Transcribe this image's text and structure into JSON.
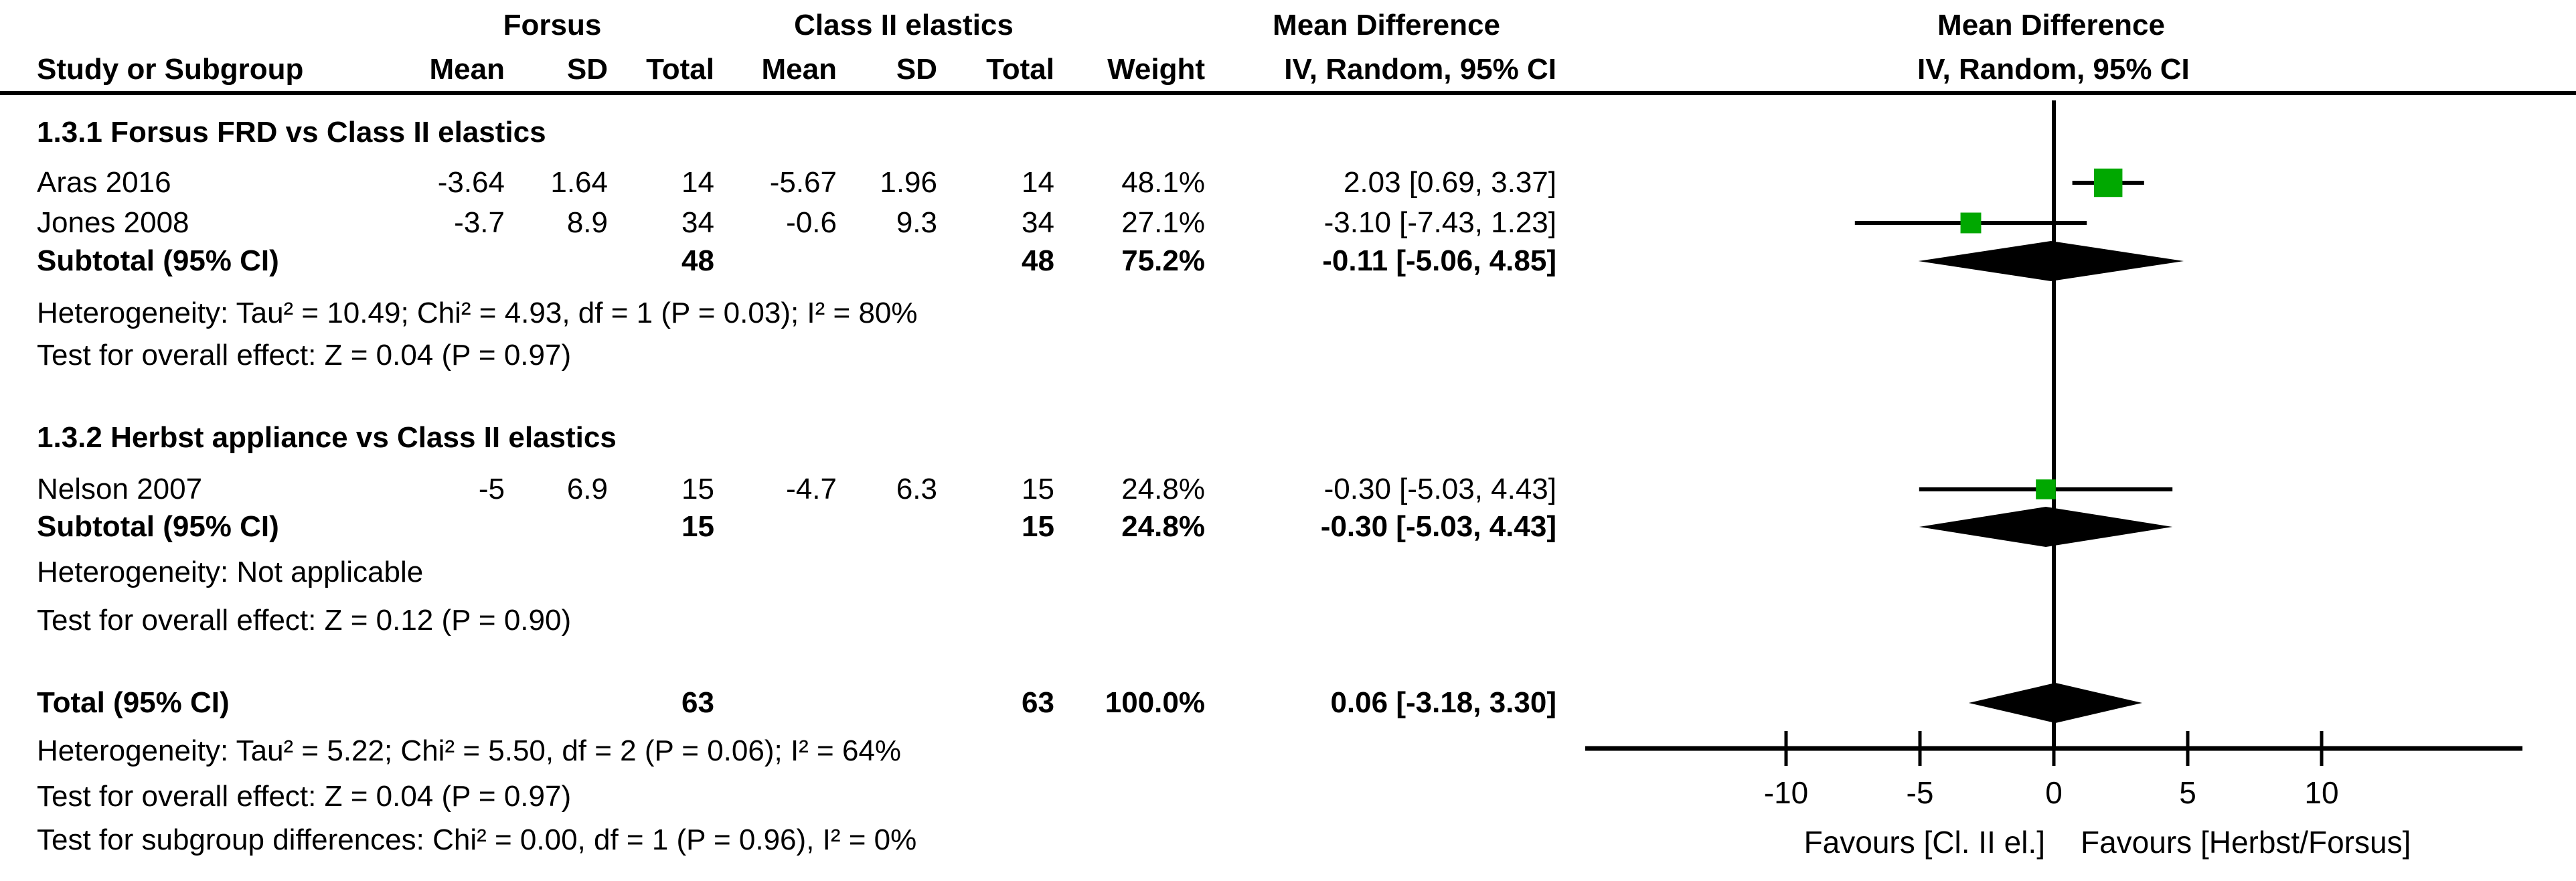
{
  "header": {
    "group_forsus": "Forsus",
    "group_classii": "Class II elastics",
    "effect_label": "Mean Difference",
    "effect_sub": "IV, Random, 95% CI",
    "plot_label": "Mean Difference",
    "plot_sub": "IV, Random, 95% CI",
    "study": "Study or Subgroup",
    "mean1": "Mean",
    "sd1": "SD",
    "total1": "Total",
    "mean2": "Mean",
    "sd2": "SD",
    "total2": "Total",
    "weight": "Weight"
  },
  "rows": [
    {
      "style": "group",
      "cells": {
        "study": "1.3.1 Forsus FRD vs Class II elastics"
      }
    },
    {
      "style": "study",
      "cells": {
        "study": "Aras 2016",
        "mean1": "-3.64",
        "sd1": "1.64",
        "total1": "14",
        "mean2": "-5.67",
        "sd2": "1.96",
        "total2": "14",
        "weight": "48.1%",
        "ci": "2.03 [0.69, 3.37]"
      }
    },
    {
      "style": "study",
      "cells": {
        "study": "Jones 2008",
        "mean1": "-3.7",
        "sd1": "8.9",
        "total1": "34",
        "mean2": "-0.6",
        "sd2": "9.3",
        "total2": "34",
        "weight": "27.1%",
        "ci": "-3.10 [-7.43, 1.23]"
      }
    },
    {
      "style": "bold",
      "cells": {
        "study": "Subtotal (95% CI)",
        "total1": "48",
        "total2": "48",
        "weight": "75.2%",
        "ci": "-0.11 [-5.06, 4.85]"
      }
    },
    {
      "style": "text",
      "cells": {
        "study": "Heterogeneity: Tau² = 10.49; Chi² = 4.93, df = 1 (P = 0.03); I² = 80%"
      }
    },
    {
      "style": "text",
      "cells": {
        "study": "Test for overall effect: Z = 0.04 (P = 0.97)"
      }
    },
    {
      "style": "group",
      "cells": {
        "study": "1.3.2 Herbst appliance vs Class II elastics"
      }
    },
    {
      "style": "study",
      "cells": {
        "study": "Nelson 2007",
        "mean1": "-5",
        "sd1": "6.9",
        "total1": "15",
        "mean2": "-4.7",
        "sd2": "6.3",
        "total2": "15",
        "weight": "24.8%",
        "ci": "-0.30 [-5.03, 4.43]"
      }
    },
    {
      "style": "bold",
      "cells": {
        "study": "Subtotal (95% CI)",
        "total1": "15",
        "total2": "15",
        "weight": "24.8%",
        "ci": "-0.30 [-5.03, 4.43]"
      }
    },
    {
      "style": "text",
      "cells": {
        "study": "Heterogeneity: Not applicable"
      }
    },
    {
      "style": "text",
      "cells": {
        "study": "Test for overall effect: Z = 0.12 (P = 0.90)"
      }
    },
    {
      "style": "bold",
      "cells": {
        "study": "Total (95% CI)",
        "total1": "63",
        "total2": "63",
        "weight": "100.0%",
        "ci": "0.06 [-3.18, 3.30]"
      }
    },
    {
      "style": "text",
      "cells": {
        "study": "Heterogeneity: Tau² = 5.22; Chi² = 5.50, df = 2 (P = 0.06); I² = 64%"
      }
    },
    {
      "style": "text",
      "cells": {
        "study": "Test for overall effect: Z = 0.04 (P = 0.97)"
      }
    },
    {
      "style": "text",
      "cells": {
        "study": "Test for subgroup differences: Chi² = 0.00, df = 1 (P = 0.96), I² = 0%"
      }
    }
  ],
  "chart_data": {
    "type": "forest",
    "title": "Mean Difference, IV, Random, 95% CI",
    "effect_measure": "Mean Difference",
    "model": "IV, Random, 95% CI",
    "subgroups": [
      {
        "name": "1.3.1 Forsus FRD vs Class II elastics",
        "studies": [
          {
            "label": "Aras 2016",
            "mean1": -3.64,
            "sd1": 1.64,
            "n1": 14,
            "mean2": -5.67,
            "sd2": 1.96,
            "n2": 14,
            "weight_pct": 48.1,
            "est": 2.03,
            "ci_low": 0.69,
            "ci_high": 3.37
          },
          {
            "label": "Jones 2008",
            "mean1": -3.7,
            "sd1": 8.9,
            "n1": 34,
            "mean2": -0.6,
            "sd2": 9.3,
            "n2": 34,
            "weight_pct": 27.1,
            "est": -3.1,
            "ci_low": -7.43,
            "ci_high": 1.23
          }
        ],
        "subtotal": {
          "n1": 48,
          "n2": 48,
          "weight_pct": 75.2,
          "est": -0.11,
          "ci_low": -5.06,
          "ci_high": 4.85,
          "heterogeneity": "Tau² = 10.49; Chi² = 4.93, df = 1 (P = 0.03); I² = 80%",
          "overall_effect": "Z = 0.04 (P = 0.97)"
        }
      },
      {
        "name": "1.3.2 Herbst appliance vs Class II elastics",
        "studies": [
          {
            "label": "Nelson 2007",
            "mean1": -5,
            "sd1": 6.9,
            "n1": 15,
            "mean2": -4.7,
            "sd2": 6.3,
            "n2": 15,
            "weight_pct": 24.8,
            "est": -0.3,
            "ci_low": -5.03,
            "ci_high": 4.43
          }
        ],
        "subtotal": {
          "n1": 15,
          "n2": 15,
          "weight_pct": 24.8,
          "est": -0.3,
          "ci_low": -5.03,
          "ci_high": 4.43,
          "heterogeneity": "Not applicable",
          "overall_effect": "Z = 0.12 (P = 0.90)"
        }
      }
    ],
    "total": {
      "n1": 63,
      "n2": 63,
      "weight_pct": 100.0,
      "est": 0.06,
      "ci_low": -3.18,
      "ci_high": 3.3,
      "heterogeneity": "Tau² = 5.22; Chi² = 5.50, df = 2 (P = 0.06); I² = 64%",
      "overall_effect": "Z = 0.04 (P = 0.97)",
      "subgroup_differences": "Chi² = 0.00, df = 1 (P = 0.96), I² = 0%"
    },
    "points": [
      {
        "type": "study",
        "row": 1,
        "est": 2.03,
        "lo": 0.69,
        "hi": 3.37,
        "weight": 48.1
      },
      {
        "type": "study",
        "row": 2,
        "est": -3.1,
        "lo": -7.43,
        "hi": 1.23,
        "weight": 27.1
      },
      {
        "type": "diamond",
        "row": 3,
        "est": -0.11,
        "lo": -5.06,
        "hi": 4.85
      },
      {
        "type": "study",
        "row": 7,
        "est": -0.3,
        "lo": -5.03,
        "hi": 4.43,
        "weight": 24.8
      },
      {
        "type": "diamond",
        "row": 8,
        "est": -0.3,
        "lo": -5.03,
        "hi": 4.43
      },
      {
        "type": "diamond",
        "row": 11,
        "est": 0.06,
        "lo": -3.18,
        "hi": 3.3
      }
    ],
    "axis": {
      "ticks": [
        -10,
        -5,
        0,
        5,
        10
      ],
      "xlim": [
        -17.5,
        17.5
      ],
      "favours_left": "Favours [Cl. II el.]",
      "favours_right": "Favours [Herbst/Forsus]"
    },
    "colors": {
      "square": "#00a800",
      "diamond": "#000000",
      "line": "#000000"
    }
  }
}
